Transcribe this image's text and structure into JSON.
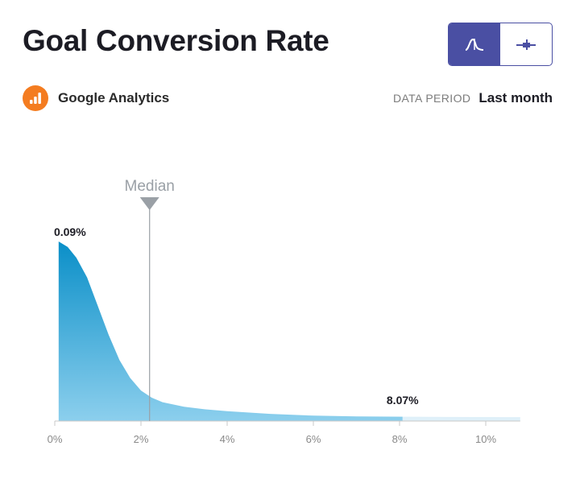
{
  "header": {
    "title": "Goal Conversion Rate",
    "toggle": {
      "active": "distribution",
      "options": [
        "distribution-icon",
        "range-icon"
      ]
    }
  },
  "source": {
    "name": "Google Analytics",
    "icon": "google-analytics-icon",
    "color": "#f47c20"
  },
  "period": {
    "label": "DATA PERIOD",
    "value": "Last month"
  },
  "chart_data": {
    "type": "area",
    "xlabel": "",
    "ylabel": "",
    "x_ticks": [
      "0%",
      "2%",
      "4%",
      "6%",
      "8%",
      "10%"
    ],
    "xlim": [
      0,
      10.8
    ],
    "highlight_range": [
      0.09,
      8.07
    ],
    "min_label": "0.09%",
    "max_label": "8.07%",
    "median": {
      "label": "Median",
      "x": 2.2
    },
    "curve": [
      {
        "x": 0.09,
        "y": 1.0
      },
      {
        "x": 0.3,
        "y": 0.97
      },
      {
        "x": 0.5,
        "y": 0.91
      },
      {
        "x": 0.75,
        "y": 0.8
      },
      {
        "x": 1.0,
        "y": 0.64
      },
      {
        "x": 1.25,
        "y": 0.48
      },
      {
        "x": 1.5,
        "y": 0.34
      },
      {
        "x": 1.75,
        "y": 0.24
      },
      {
        "x": 2.0,
        "y": 0.17
      },
      {
        "x": 2.25,
        "y": 0.13
      },
      {
        "x": 2.5,
        "y": 0.105
      },
      {
        "x": 3.0,
        "y": 0.08
      },
      {
        "x": 3.5,
        "y": 0.065
      },
      {
        "x": 4.0,
        "y": 0.055
      },
      {
        "x": 5.0,
        "y": 0.04
      },
      {
        "x": 6.0,
        "y": 0.03
      },
      {
        "x": 7.0,
        "y": 0.026
      },
      {
        "x": 8.07,
        "y": 0.024
      },
      {
        "x": 9.0,
        "y": 0.023
      },
      {
        "x": 10.8,
        "y": 0.022
      }
    ],
    "colors": {
      "fill_top": "#0a8fc8",
      "fill_bottom": "#8ccfed",
      "tail": "#dff0f9",
      "median_line": "#9aa0a6",
      "axis": "#c8c8c8"
    }
  }
}
